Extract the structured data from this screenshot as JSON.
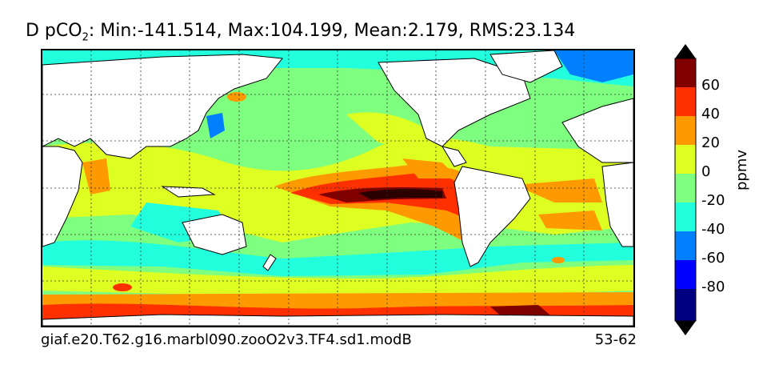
{
  "title": {
    "var_prefix": "D pCO",
    "var_sub": "2",
    "stats": ": Min:-141.514, Max:104.199, Mean:2.179, RMS:23.134"
  },
  "footer": {
    "case_name": "giaf.e20.T62.g16.marbl090.zooO2v3.TF4.sd1.modB",
    "years": "53-62"
  },
  "colorbar": {
    "units": "ppmv",
    "tick_labels": [
      "60",
      "40",
      "20",
      "0",
      "-20",
      "-40",
      "-60",
      "-80"
    ],
    "extend": "both",
    "colors_top_to_bottom": [
      "#800000",
      "#ff3000",
      "#ff9900",
      "#ddff22",
      "#7fff7f",
      "#22ffdd",
      "#0080ff",
      "#0000ff",
      "#000080"
    ],
    "over_color": "#000000",
    "under_color": "#000000"
  },
  "map": {
    "projection": "global lat-lon",
    "grid": "dotted",
    "land_color": "#ffffff",
    "coastline_color": "#000000"
  }
}
